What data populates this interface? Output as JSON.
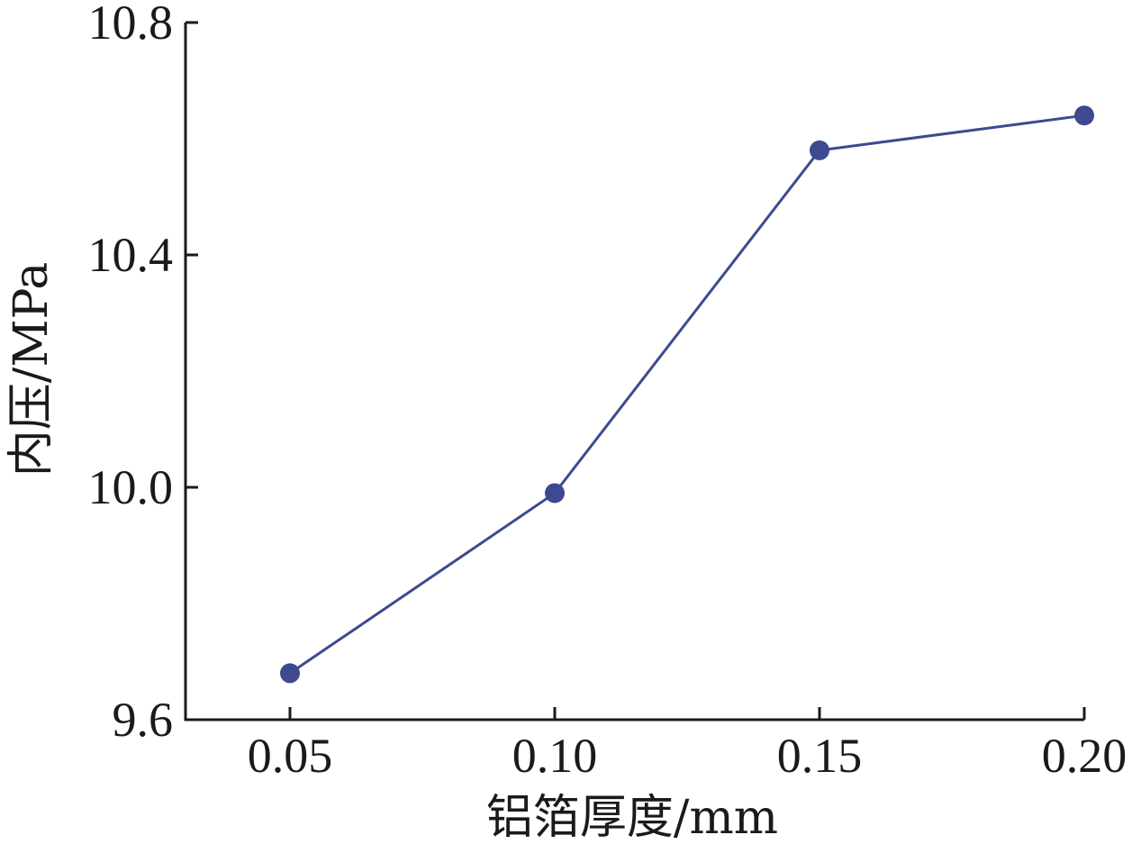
{
  "chart_data": {
    "type": "line",
    "title": "",
    "xlabel": "铝箔厚度/mm",
    "ylabel": "内压/MPa",
    "x": [
      0.05,
      0.1,
      0.15,
      0.2
    ],
    "x_tick_labels": [
      "0.05",
      "0.10",
      "0.15",
      "0.20"
    ],
    "y_tick_values": [
      9.6,
      10.0,
      10.4,
      10.8
    ],
    "y_tick_labels": [
      "9.6",
      "10.0",
      "10.4",
      "10.8"
    ],
    "xlim": [
      0.03,
      0.2
    ],
    "ylim": [
      9.6,
      10.8
    ],
    "grid": false,
    "series": [
      {
        "values": [
          9.68,
          9.99,
          10.58,
          10.64
        ],
        "color": "#3d4a8f",
        "marker": "circle"
      }
    ]
  }
}
